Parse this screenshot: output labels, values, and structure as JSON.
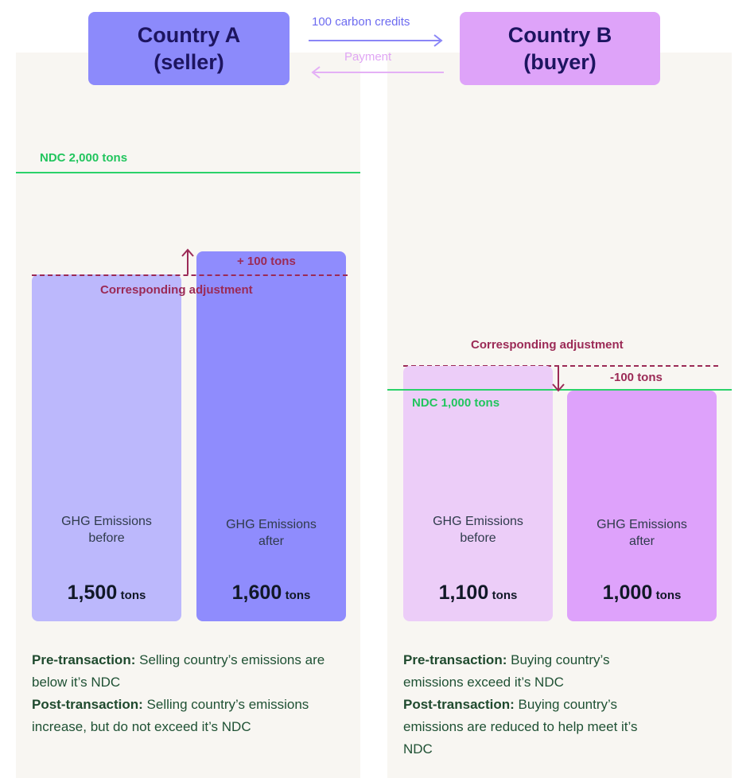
{
  "header": {
    "country_a": {
      "line1": "Country A",
      "line2": "(seller)"
    },
    "country_b": {
      "line1": "Country B",
      "line2": "(buyer)"
    },
    "credits_label": "100 carbon credits",
    "payment_label": "Payment"
  },
  "seller": {
    "ndc_label": "NDC 2,000 tons",
    "adjustment_label": "Corresponding adjustment",
    "delta_label": "+ 100 tons",
    "bar_before": {
      "caption_line1": "GHG Emissions",
      "caption_line2": "before",
      "value": "1,500",
      "unit": "tons"
    },
    "bar_after": {
      "caption_line1": "GHG Emissions",
      "caption_line2": "after",
      "value": "1,600",
      "unit": "tons"
    },
    "pre_title": "Pre-transaction:",
    "pre_text": "Selling country’s emissions are below it’s NDC",
    "post_title": "Post-transaction:",
    "post_text": "Selling country’s emissions increase, but do not exceed it’s NDC"
  },
  "buyer": {
    "ndc_label": "NDC 1,000 tons",
    "adjustment_label": "Corresponding adjustment",
    "delta_label": "-100 tons",
    "bar_before": {
      "caption_line1": "GHG Emissions",
      "caption_line2": "before",
      "value": "1,100",
      "unit": "tons"
    },
    "bar_after": {
      "caption_line1": "GHG Emissions",
      "caption_line2": "after",
      "value": "1,000",
      "unit": "tons"
    },
    "pre_title": "Pre-transaction:",
    "pre_text": "Buying country’s emissions exceed it’s NDC",
    "post_title": "Post-transaction:",
    "post_text": "Buying country’s emissions are reduced to help meet it’s NDC"
  },
  "colors": {
    "seller_before_bar": "#bcb8fc",
    "seller_after_bar": "#8f8cfd",
    "buyer_before_bar": "#eccdf8",
    "buyer_after_bar": "#dea2fb",
    "ndc_line": "#2bd26a",
    "adjustment": "#9b2a56"
  }
}
